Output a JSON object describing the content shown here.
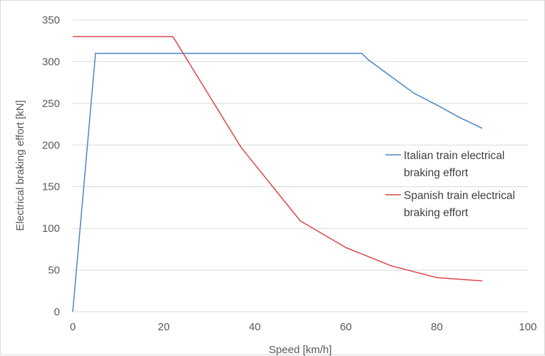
{
  "chart_data": {
    "type": "line",
    "title": "",
    "xlabel": "Speed [km/h]",
    "ylabel": "Electrical braking effort [kN]",
    "xlim": [
      0,
      100
    ],
    "ylim": [
      0,
      350
    ],
    "x_ticks": [
      "0",
      "20",
      "40",
      "60",
      "80",
      "100"
    ],
    "y_ticks": [
      "0",
      "50",
      "100",
      "150",
      "200",
      "250",
      "300",
      "350"
    ],
    "grid": "horizontal",
    "legend_position": "right",
    "series": [
      {
        "name_lines": [
          "Italian train electrical",
          "braking effort"
        ],
        "color": "#4a86c5",
        "points": [
          [
            0,
            0
          ],
          [
            5,
            310
          ],
          [
            63.5,
            310
          ],
          [
            65,
            302
          ],
          [
            70,
            282
          ],
          [
            75,
            262
          ],
          [
            80,
            248
          ],
          [
            85,
            233
          ],
          [
            90,
            220
          ]
        ]
      },
      {
        "name_lines": [
          "Spanish train electrical",
          "braking effort"
        ],
        "color": "#d9484a",
        "points": [
          [
            0,
            330
          ],
          [
            22,
            330
          ],
          [
            37,
            197
          ],
          [
            50,
            109
          ],
          [
            60,
            77
          ],
          [
            70,
            55
          ],
          [
            80,
            41
          ],
          [
            90,
            37
          ]
        ]
      }
    ]
  }
}
